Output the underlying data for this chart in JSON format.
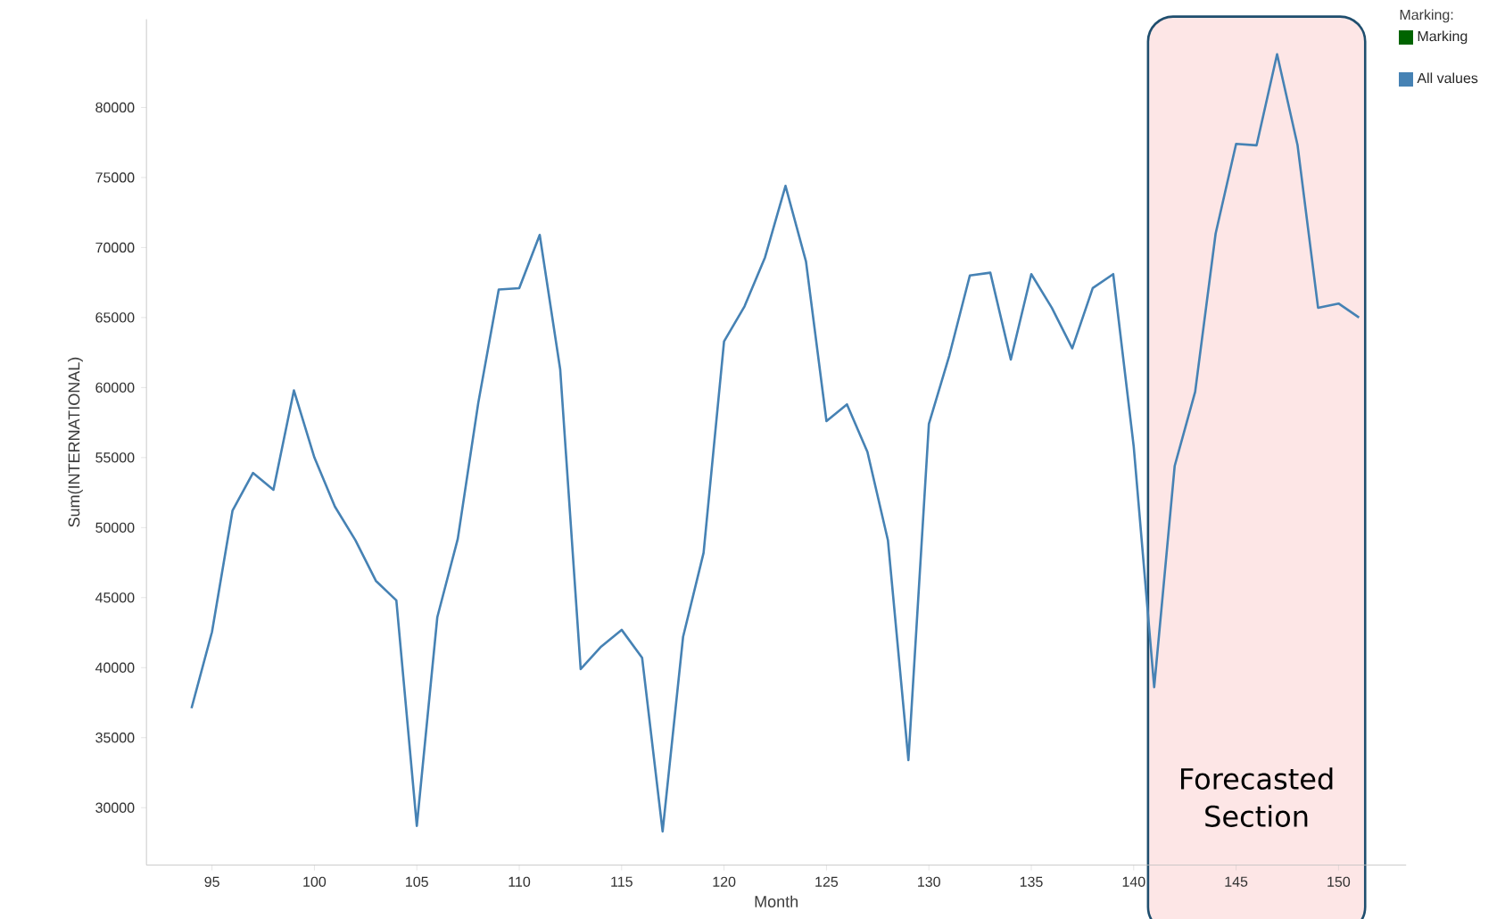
{
  "chart_data": {
    "type": "line",
    "xlabel": "Month",
    "ylabel": "Sum(INTERNATIONAL)",
    "legend_title": "Marking:",
    "legend": "top right",
    "grid": false,
    "x": [
      94,
      95,
      96,
      97,
      98,
      99,
      100,
      101,
      102,
      103,
      104,
      105,
      106,
      107,
      108,
      109,
      110,
      111,
      112,
      113,
      114,
      115,
      116,
      117,
      118,
      119,
      120,
      121,
      122,
      123,
      124,
      125,
      126,
      127,
      128,
      129,
      130,
      131,
      132,
      133,
      134,
      135,
      136,
      137,
      138,
      139,
      140,
      141,
      142,
      143,
      144,
      145,
      146,
      147,
      148,
      149,
      150,
      151
    ],
    "series": [
      {
        "name": "Marking",
        "color": "#006400",
        "values": [
          null,
          null,
          null,
          null,
          null,
          null,
          null,
          null,
          null,
          null,
          null,
          null,
          null,
          null,
          null,
          null,
          null,
          null,
          null,
          null,
          null,
          null,
          null,
          null,
          null,
          null,
          null,
          null,
          null,
          null,
          null,
          null,
          null,
          null,
          null,
          null,
          null,
          null,
          null,
          null,
          null,
          null,
          null,
          null,
          null,
          null,
          null,
          null,
          null,
          null,
          null,
          null,
          null,
          null,
          null,
          null,
          null,
          null
        ]
      },
      {
        "name": "All values",
        "color": "#4682b4",
        "values": [
          37100,
          42550,
          51200,
          53900,
          52700,
          59800,
          55000,
          51500,
          49100,
          46200,
          44800,
          28700,
          43600,
          49200,
          58900,
          67000,
          67100,
          70900,
          61300,
          39900,
          41500,
          42700,
          40700,
          28300,
          42200,
          48200,
          63300,
          65800,
          69300,
          74400,
          69000,
          57600,
          58800,
          55400,
          49100,
          33400,
          57400,
          62300,
          68000,
          68200,
          62000,
          68100,
          65700,
          62800,
          67100,
          68100,
          55800,
          38600,
          54400,
          59700,
          71000,
          77400,
          77300,
          83800,
          77300,
          65700,
          66000,
          65000
        ]
      }
    ],
    "xlim": [
      91.8,
      153.3
    ],
    "ylim": [
      25900,
      86300
    ],
    "xticks": [
      95,
      100,
      105,
      110,
      115,
      120,
      125,
      130,
      135,
      140,
      145,
      150
    ],
    "yticks": [
      30000,
      35000,
      40000,
      45000,
      50000,
      55000,
      60000,
      65000,
      70000,
      75000,
      80000
    ],
    "bands": [
      {
        "axis": "x",
        "from": 140.7,
        "to": 151.3,
        "label": "Forecasted Section",
        "color": "#fde6e6"
      }
    ]
  }
}
